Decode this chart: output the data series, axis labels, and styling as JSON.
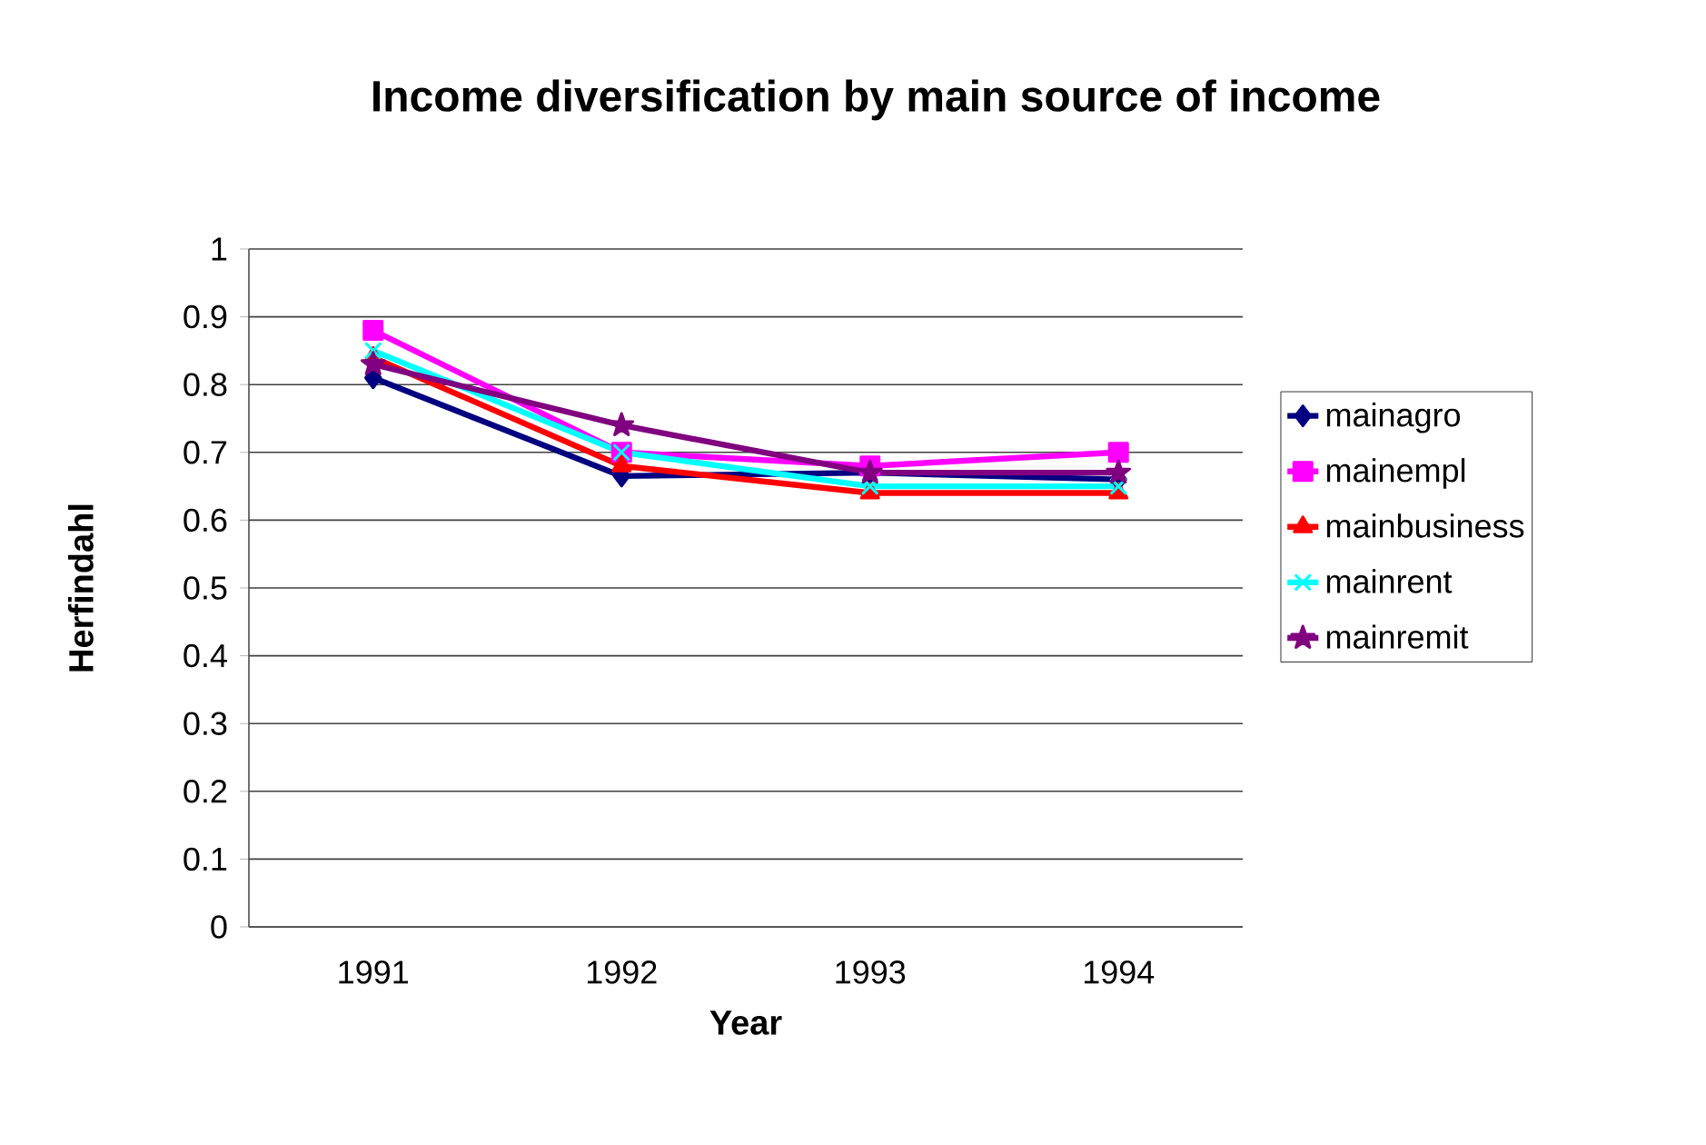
{
  "chart_data": {
    "type": "line",
    "title": "Income diversification by main source of income",
    "xlabel": "Year",
    "ylabel": "Herfindahl",
    "categories": [
      "1991",
      "1992",
      "1993",
      "1994"
    ],
    "series": [
      {
        "name": "mainagro",
        "color": "#000080",
        "marker": "diamond",
        "values": [
          0.81,
          0.665,
          0.67,
          0.66
        ]
      },
      {
        "name": "mainempl",
        "color": "#ff00ff",
        "marker": "square",
        "values": [
          0.88,
          0.7,
          0.68,
          0.7
        ]
      },
      {
        "name": "mainbusiness",
        "color": "#ff0000",
        "marker": "triangle",
        "values": [
          0.84,
          0.68,
          0.64,
          0.64
        ]
      },
      {
        "name": "mainrent",
        "color": "#00ffff",
        "marker": "cross",
        "values": [
          0.85,
          0.7,
          0.65,
          0.65
        ]
      },
      {
        "name": "mainremit",
        "color": "#800080",
        "marker": "star",
        "values": [
          0.83,
          0.74,
          0.67,
          0.67
        ]
      }
    ],
    "ylim": [
      0,
      1
    ],
    "yticks": [
      0,
      0.1,
      0.2,
      0.3,
      0.4,
      0.5,
      0.6,
      0.7,
      0.8,
      0.9,
      1
    ],
    "grid": "y",
    "legend": "right",
    "line_style": "solid"
  }
}
